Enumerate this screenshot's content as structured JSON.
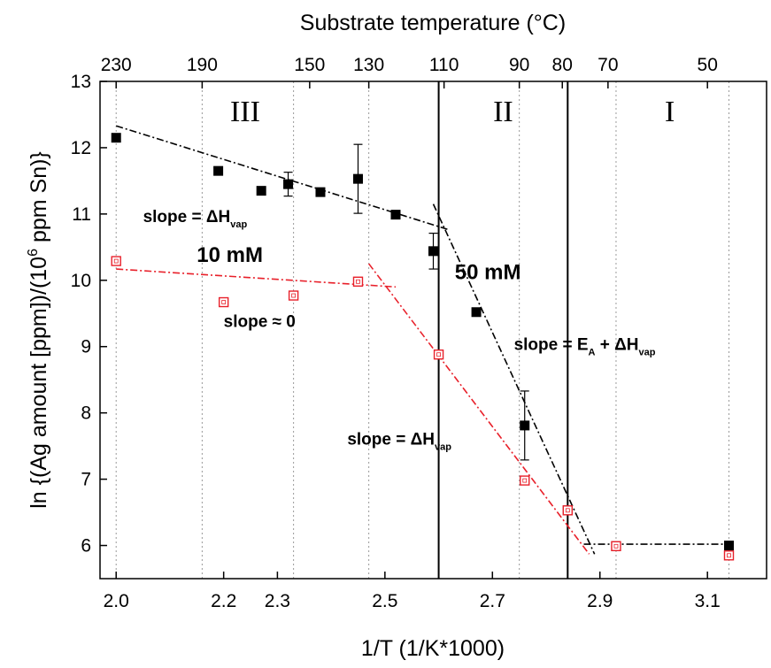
{
  "chart_data": {
    "type": "scatter",
    "xlabel": "1/T (1/K*1000)",
    "x2label": "Substrate temperature (°C)",
    "ylabel_main": "ln {(Ag amount [ppm])/(10",
    "ylabel_sup": "6",
    "ylabel_tail": " ppm Sn)}",
    "xlim": [
      1.97,
      3.21
    ],
    "ylim": [
      5.5,
      13
    ],
    "x_ticks": [
      2.0,
      2.2,
      2.3,
      2.5,
      2.7,
      2.9,
      3.1
    ],
    "x_tick_labels": [
      "2.0",
      "2.2",
      "2.3",
      "2.5",
      "2.7",
      "2.9",
      "3.1"
    ],
    "y_ticks": [
      6,
      7,
      8,
      9,
      10,
      11,
      12,
      13
    ],
    "y_tick_labels": [
      "6",
      "7",
      "8",
      "9",
      "10",
      "11",
      "12",
      "13"
    ],
    "top_ticks": [
      {
        "label": "230",
        "x": 2.0
      },
      {
        "label": "190",
        "x": 2.16
      },
      {
        "label": "150",
        "x": 2.36
      },
      {
        "label": "130",
        "x": 2.47
      },
      {
        "label": "110",
        "x": 2.61
      },
      {
        "label": "90",
        "x": 2.75
      },
      {
        "label": "80",
        "x": 2.83
      },
      {
        "label": "70",
        "x": 2.915
      },
      {
        "label": "50",
        "x": 3.1
      }
    ],
    "grid_x": [
      2.0,
      2.16,
      2.33,
      2.47,
      2.75,
      2.93,
      3.14
    ],
    "region_boundaries": [
      2.6,
      2.84
    ],
    "regions": [
      {
        "label": "III",
        "x": 2.24,
        "y": 12.4
      },
      {
        "label": "II",
        "x": 2.72,
        "y": 12.4
      },
      {
        "label": "I",
        "x": 3.03,
        "y": 12.4
      }
    ],
    "series": [
      {
        "name": "50 mM",
        "color": "#000000",
        "marker": "filled-square",
        "x": [
          2.0,
          2.19,
          2.27,
          2.32,
          2.38,
          2.45,
          2.52,
          2.59,
          2.67,
          2.76,
          2.84,
          2.93,
          3.14
        ],
        "y": [
          12.15,
          11.65,
          11.35,
          11.45,
          11.33,
          11.53,
          10.99,
          10.44,
          9.52,
          7.81,
          6.53,
          5.99,
          6.0
        ],
        "yerr": [
          0,
          0,
          0,
          0.18,
          0,
          0.52,
          0,
          0.27,
          0,
          0.52,
          0,
          0,
          0
        ]
      },
      {
        "name": "10 mM",
        "color": "#e8202a",
        "marker": "open-square",
        "x": [
          2.0,
          2.2,
          2.33,
          2.45,
          2.6,
          2.76,
          2.84,
          2.93,
          3.14
        ],
        "y": [
          10.29,
          9.67,
          9.77,
          9.98,
          8.88,
          6.98,
          6.53,
          5.99,
          5.85
        ],
        "yerr": [
          0,
          0,
          0,
          0,
          0,
          0,
          0,
          0,
          0
        ]
      }
    ],
    "fit_lines": [
      {
        "color": "#000000",
        "x": [
          2.0,
          2.62
        ],
        "y": [
          12.33,
          10.76
        ]
      },
      {
        "color": "#000000",
        "x": [
          2.59,
          2.89
        ],
        "y": [
          11.15,
          5.87
        ]
      },
      {
        "color": "#000000",
        "x": [
          2.87,
          3.15
        ],
        "y": [
          6.02,
          6.02
        ]
      },
      {
        "color": "#e8202a",
        "x": [
          2.0,
          2.52
        ],
        "y": [
          10.17,
          9.9
        ]
      },
      {
        "color": "#e8202a",
        "x": [
          2.47,
          2.88
        ],
        "y": [
          10.25,
          5.87
        ]
      }
    ],
    "annotations": [
      {
        "text": "slope = ΔH",
        "sub": "vap",
        "x": 2.05,
        "y": 10.88,
        "color": "#000000",
        "size": 19
      },
      {
        "text": "10 mM",
        "sub": "",
        "x": 2.15,
        "y": 10.28,
        "color": "#e8202a",
        "size": 24
      },
      {
        "text": "50 mM",
        "sub": "",
        "x": 2.63,
        "y": 10.02,
        "color": "#000000",
        "size": 24
      },
      {
        "text": "slope ≈ 0",
        "sub": "",
        "x": 2.2,
        "y": 9.3,
        "color": "#e8202a",
        "size": 19
      },
      {
        "text": "slope = E",
        "sub": "A",
        "tail": " + ΔH",
        "sub2": "vap",
        "x": 2.74,
        "y": 8.95,
        "color": "#000000",
        "size": 19
      },
      {
        "text": "slope = ΔH",
        "sub": "vap",
        "x": 2.43,
        "y": 7.52,
        "color": "#e8202a",
        "size": 19
      }
    ]
  }
}
